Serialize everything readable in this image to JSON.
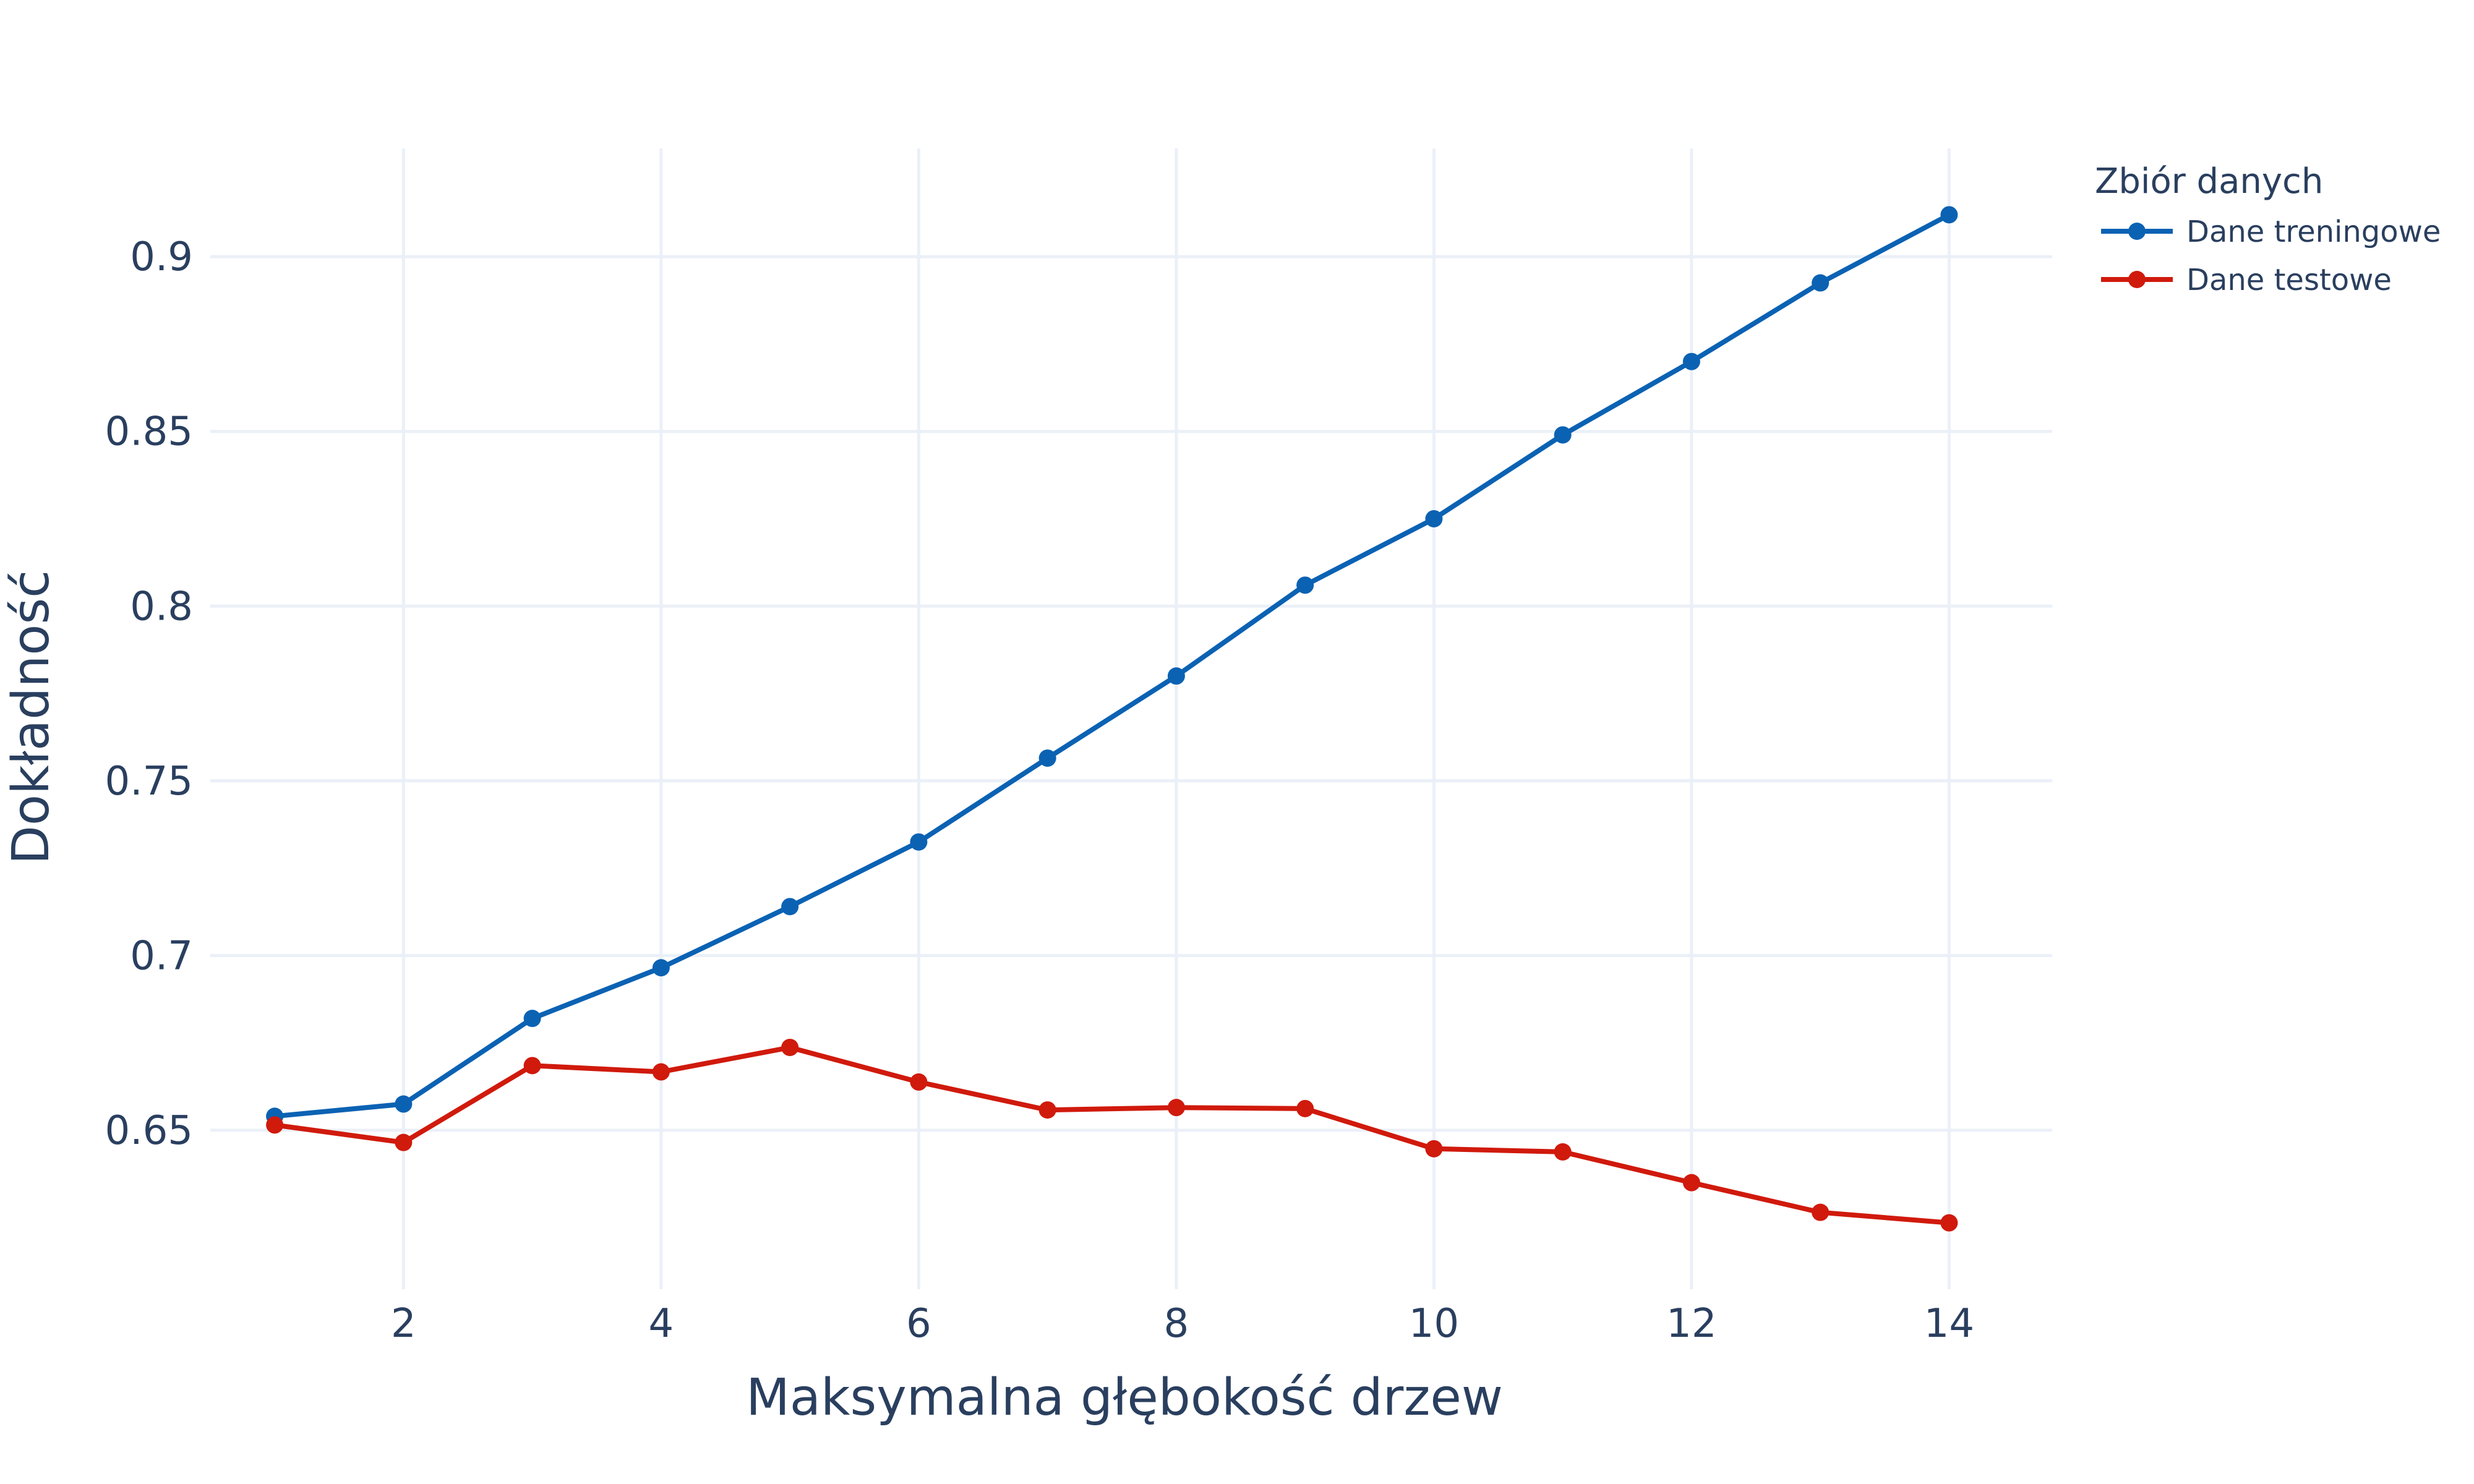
{
  "chart_data": {
    "type": "line",
    "title": "",
    "xlabel": "Maksymalna głębokość drzew",
    "ylabel": "Dokładność",
    "xlim": [
      0.5,
      14.8
    ],
    "ylim": [
      0.6045,
      0.931
    ],
    "x_ticks": [
      2,
      4,
      6,
      8,
      10,
      12,
      14
    ],
    "y_ticks": [
      0.65,
      0.7,
      0.75,
      0.8,
      0.85,
      0.9
    ],
    "y_tick_labels": [
      "0.65",
      "0.7",
      "0.75",
      "0.8",
      "0.85",
      "0.9"
    ],
    "grid": true,
    "legend": {
      "title": "Zbiór danych",
      "placement": "top-right-outside"
    },
    "x": [
      1,
      2,
      3,
      4,
      5,
      6,
      7,
      8,
      9,
      10,
      11,
      12,
      13,
      14
    ],
    "series": [
      {
        "name": "Dane treningowe",
        "color": "#0b62b3",
        "values": [
          0.654,
          0.6575,
          0.682,
          0.6965,
          0.714,
          0.7325,
          0.7565,
          0.78,
          0.806,
          0.825,
          0.849,
          0.87,
          0.8925,
          0.912
        ]
      },
      {
        "name": "Dane testowe",
        "color": "#d01a0c",
        "values": [
          0.6515,
          0.6465,
          0.6685,
          0.6667,
          0.6737,
          0.6638,
          0.6558,
          0.6565,
          0.6562,
          0.6447,
          0.6438,
          0.635,
          0.6265,
          0.6235
        ]
      }
    ]
  }
}
